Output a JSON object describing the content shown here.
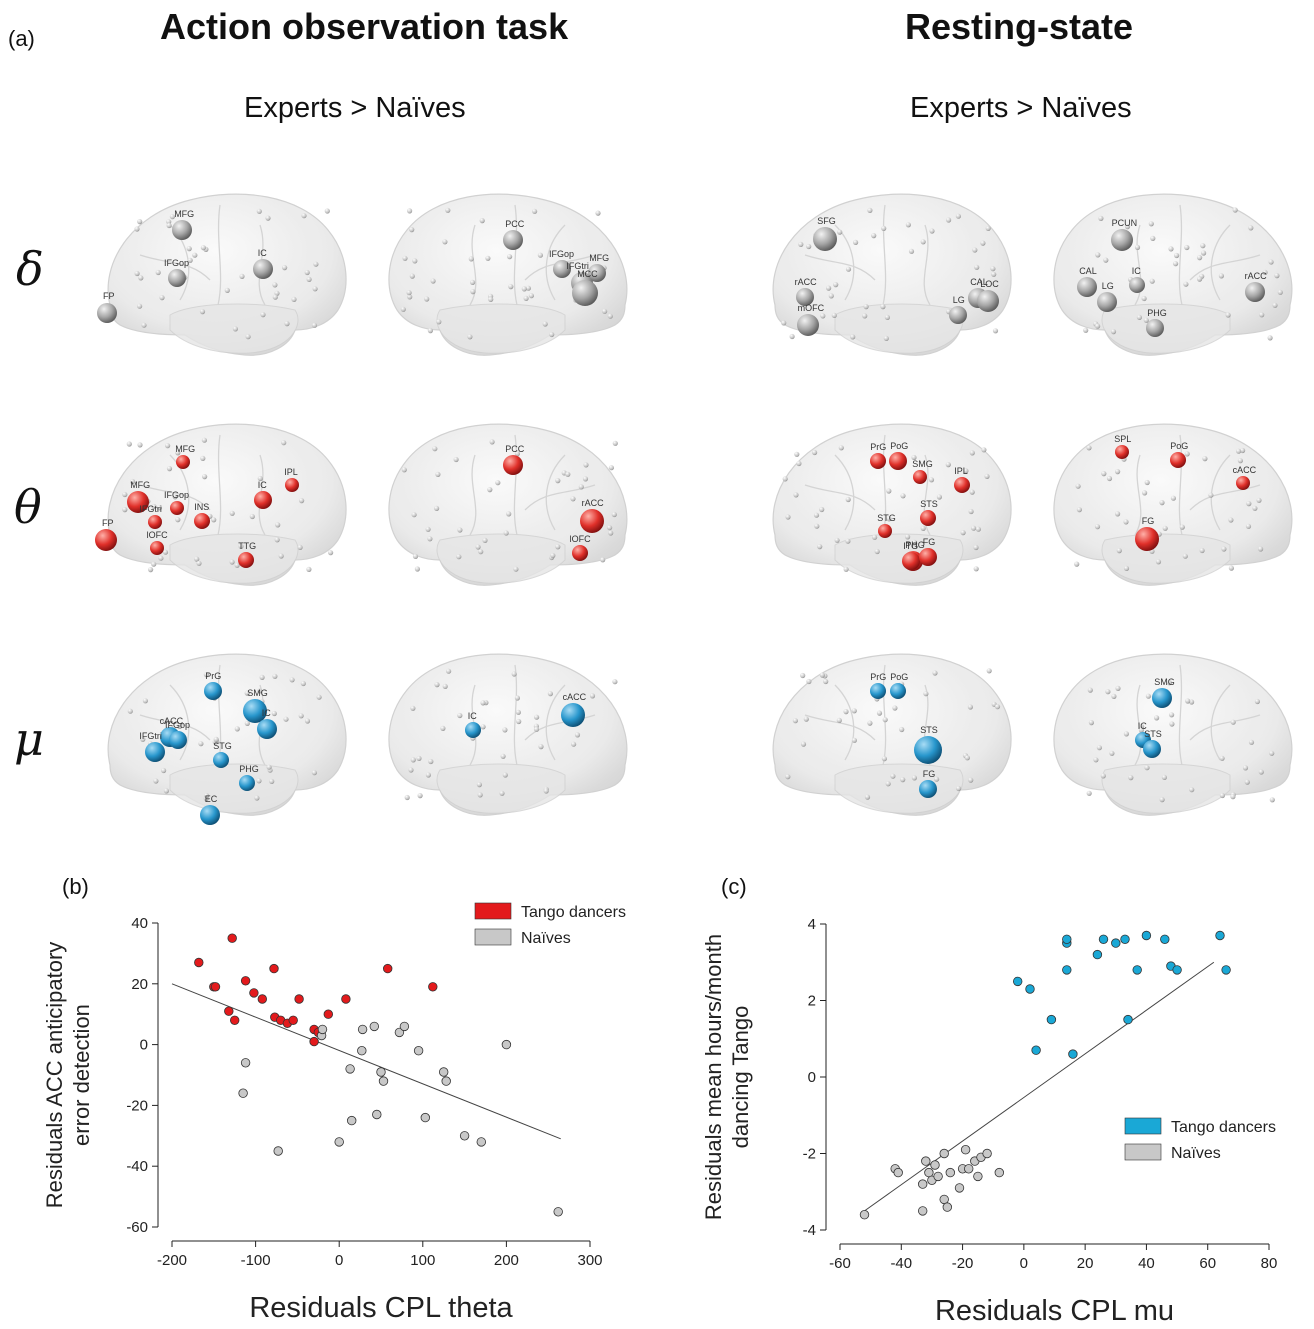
{
  "panel_labels": {
    "a": "(a)",
    "b": "(b)",
    "c": "(c)"
  },
  "sections": [
    {
      "title": "Action observation task",
      "contrast": "Experts > Naïves"
    },
    {
      "title": "Resting-state",
      "contrast": "Experts > Naïves"
    }
  ],
  "bands": [
    "δ",
    "θ",
    "μ"
  ],
  "colors": {
    "delta": "#9a9a9a",
    "theta": "#d9282a",
    "mu": "#1f8fc9",
    "tango_b": "#e31a1c",
    "tango_c": "#1aa8d6",
    "naive": "#c8c8c8"
  },
  "brains": [
    {
      "row": 0,
      "col": 0,
      "view": "left",
      "nodes": [
        {
          "label": "MFG",
          "r": 10
        },
        {
          "label": "IFGop",
          "r": 9
        },
        {
          "label": "IC",
          "r": 10
        },
        {
          "label": "FP",
          "r": 10
        }
      ]
    },
    {
      "row": 0,
      "col": 1,
      "view": "right",
      "nodes": [
        {
          "label": "PCC",
          "r": 10
        },
        {
          "label": "IFGop",
          "r": 9
        },
        {
          "label": "IFGtri",
          "r": 11
        },
        {
          "label": "MFG",
          "r": 9
        },
        {
          "label": "MCC",
          "r": 13
        }
      ]
    },
    {
      "row": 0,
      "col": 2,
      "view": "left",
      "nodes": [
        {
          "label": "SFG",
          "r": 12
        },
        {
          "label": "rACC",
          "r": 9
        },
        {
          "label": "mOFC",
          "r": 11
        },
        {
          "label": "CAL",
          "r": 10
        },
        {
          "label": "LOC",
          "r": 11
        },
        {
          "label": "LG",
          "r": 9
        }
      ]
    },
    {
      "row": 0,
      "col": 3,
      "view": "right",
      "nodes": [
        {
          "label": "PCUN",
          "r": 11
        },
        {
          "label": "IC",
          "r": 8
        },
        {
          "label": "CAL",
          "r": 10
        },
        {
          "label": "LG",
          "r": 10
        },
        {
          "label": "rACC",
          "r": 10
        },
        {
          "label": "PHG",
          "r": 9
        }
      ]
    },
    {
      "row": 1,
      "col": 0,
      "view": "left",
      "nodes": [
        {
          "label": "MFG",
          "r": 7
        },
        {
          "label": "IPL",
          "r": 7
        },
        {
          "label": "MFG",
          "r": 11
        },
        {
          "label": "IFGop",
          "r": 7
        },
        {
          "label": "IC",
          "r": 9
        },
        {
          "label": "INS",
          "r": 8
        },
        {
          "label": "IFGtri",
          "r": 7
        },
        {
          "label": "FP",
          "r": 11
        },
        {
          "label": "lOFC",
          "r": 7
        },
        {
          "label": "TTG",
          "r": 8
        }
      ]
    },
    {
      "row": 1,
      "col": 1,
      "view": "right",
      "nodes": [
        {
          "label": "PCC",
          "r": 10
        },
        {
          "label": "rACC",
          "r": 12
        },
        {
          "label": "lOFC",
          "r": 8
        }
      ]
    },
    {
      "row": 1,
      "col": 2,
      "view": "left",
      "nodes": [
        {
          "label": "PrG",
          "r": 8
        },
        {
          "label": "PoG",
          "r": 9
        },
        {
          "label": "SMG",
          "r": 7
        },
        {
          "label": "IPL",
          "r": 8
        },
        {
          "label": "STS",
          "r": 8
        },
        {
          "label": "STG",
          "r": 7
        },
        {
          "label": "PHG",
          "r": 10
        },
        {
          "label": "ITG",
          "r": 9
        },
        {
          "label": "FG",
          "r": 9
        }
      ]
    },
    {
      "row": 1,
      "col": 3,
      "view": "right",
      "nodes": [
        {
          "label": "SPL",
          "r": 7
        },
        {
          "label": "PoG",
          "r": 8
        },
        {
          "label": "cACC",
          "r": 7
        },
        {
          "label": "FG",
          "r": 12
        }
      ]
    },
    {
      "row": 2,
      "col": 0,
      "view": "left",
      "nodes": [
        {
          "label": "PrG",
          "r": 9
        },
        {
          "label": "SMG",
          "r": 12
        },
        {
          "label": "cACC",
          "r": 10
        },
        {
          "label": "IC",
          "r": 10
        },
        {
          "label": "IFGop",
          "r": 9
        },
        {
          "label": "IFGtri",
          "r": 10
        },
        {
          "label": "STG",
          "r": 8
        },
        {
          "label": "PHG",
          "r": 8
        },
        {
          "label": "EC",
          "r": 10
        }
      ]
    },
    {
      "row": 2,
      "col": 1,
      "view": "right",
      "nodes": [
        {
          "label": "cACC",
          "r": 12
        },
        {
          "label": "IC",
          "r": 8
        }
      ]
    },
    {
      "row": 2,
      "col": 2,
      "view": "left",
      "nodes": [
        {
          "label": "PrG",
          "r": 8
        },
        {
          "label": "PoG",
          "r": 8
        },
        {
          "label": "STS",
          "r": 14
        },
        {
          "label": "FG",
          "r": 9
        }
      ]
    },
    {
      "row": 2,
      "col": 3,
      "view": "right",
      "nodes": [
        {
          "label": "SMG",
          "r": 10
        },
        {
          "label": "IC",
          "r": 8
        },
        {
          "label": "STS",
          "r": 9
        }
      ]
    }
  ],
  "chart_data": [
    {
      "type": "scatter",
      "panel": "(b)",
      "xlabel": "Residuals CPL theta",
      "ylabel": [
        "Residuals ACC anticipatory",
        "error detection"
      ],
      "xlim": [
        -200,
        300
      ],
      "ylim": [
        -60,
        40
      ],
      "xticks": [
        -200,
        -100,
        0,
        100,
        200,
        300
      ],
      "yticks": [
        -60,
        -40,
        -20,
        0,
        20,
        40
      ],
      "legend_position": "top-right",
      "series": [
        {
          "name": "Tango dancers",
          "points": [
            [
              -168,
              27
            ],
            [
              -150,
              19
            ],
            [
              -148,
              19
            ],
            [
              -128,
              35
            ],
            [
              -112,
              21
            ],
            [
              -102,
              17
            ],
            [
              -78,
              25
            ],
            [
              -92,
              15
            ],
            [
              -132,
              11
            ],
            [
              -125,
              8
            ],
            [
              -77,
              9
            ],
            [
              -70,
              8
            ],
            [
              -62,
              7
            ],
            [
              -55,
              8
            ],
            [
              -48,
              15
            ],
            [
              -30,
              5
            ],
            [
              -25,
              4
            ],
            [
              -30,
              1
            ],
            [
              -13,
              10
            ],
            [
              8,
              15
            ],
            [
              58,
              25
            ],
            [
              112,
              19
            ]
          ]
        },
        {
          "name": "Naïves",
          "points": [
            [
              -112,
              -6
            ],
            [
              -115,
              -16
            ],
            [
              -73,
              -35
            ],
            [
              -21,
              3
            ],
            [
              -20,
              5
            ],
            [
              0,
              -32
            ],
            [
              13,
              -8
            ],
            [
              15,
              -25
            ],
            [
              27,
              -2
            ],
            [
              28,
              5
            ],
            [
              42,
              6
            ],
            [
              45,
              -23
            ],
            [
              50,
              -9
            ],
            [
              53,
              -12
            ],
            [
              72,
              4
            ],
            [
              78,
              6
            ],
            [
              95,
              -2
            ],
            [
              103,
              -24
            ],
            [
              125,
              -9
            ],
            [
              128,
              -12
            ],
            [
              150,
              -30
            ],
            [
              170,
              -32
            ],
            [
              200,
              0
            ],
            [
              262,
              -55
            ]
          ]
        }
      ],
      "fit_line": [
        [
          -200,
          20
        ],
        [
          265,
          -31
        ]
      ]
    },
    {
      "type": "scatter",
      "panel": "(c)",
      "xlabel": "Residuals CPL mu",
      "ylabel": [
        "Residuals mean hours/month",
        "dancing Tango"
      ],
      "xlim": [
        -60,
        80
      ],
      "ylim": [
        -4,
        4
      ],
      "xticks": [
        -60,
        -40,
        -20,
        0,
        20,
        40,
        60,
        80
      ],
      "yticks": [
        -4,
        -2,
        0,
        2,
        4
      ],
      "legend_position": "bottom-right",
      "series": [
        {
          "name": "Tango dancers",
          "points": [
            [
              -2,
              2.5
            ],
            [
              2,
              2.3
            ],
            [
              4,
              0.7
            ],
            [
              9,
              1.5
            ],
            [
              14,
              3.5
            ],
            [
              14,
              3.6
            ],
            [
              14,
              2.8
            ],
            [
              16,
              0.6
            ],
            [
              24,
              3.2
            ],
            [
              26,
              3.6
            ],
            [
              30,
              3.5
            ],
            [
              33,
              3.6
            ],
            [
              34,
              1.5
            ],
            [
              37,
              2.8
            ],
            [
              40,
              3.7
            ],
            [
              46,
              3.6
            ],
            [
              48,
              2.9
            ],
            [
              50,
              2.8
            ],
            [
              64,
              3.7
            ],
            [
              66,
              2.8
            ]
          ]
        },
        {
          "name": "Naïves",
          "points": [
            [
              -52,
              -3.6
            ],
            [
              -42,
              -2.4
            ],
            [
              -41,
              -2.5
            ],
            [
              -33,
              -2.8
            ],
            [
              -33,
              -3.5
            ],
            [
              -32,
              -2.2
            ],
            [
              -31,
              -2.5
            ],
            [
              -30,
              -2.7
            ],
            [
              -29,
              -2.3
            ],
            [
              -28,
              -2.6
            ],
            [
              -26,
              -3.2
            ],
            [
              -25,
              -3.4
            ],
            [
              -26,
              -2
            ],
            [
              -24,
              -2.5
            ],
            [
              -21,
              -2.9
            ],
            [
              -20,
              -2.4
            ],
            [
              -19,
              -1.9
            ],
            [
              -18,
              -2.4
            ],
            [
              -16,
              -2.2
            ],
            [
              -15,
              -2.6
            ],
            [
              -14,
              -2.1
            ],
            [
              -12,
              -2
            ],
            [
              -8,
              -2.5
            ]
          ]
        }
      ],
      "fit_line": [
        [
          -52,
          -3.5
        ],
        [
          62,
          3.0
        ]
      ]
    }
  ]
}
